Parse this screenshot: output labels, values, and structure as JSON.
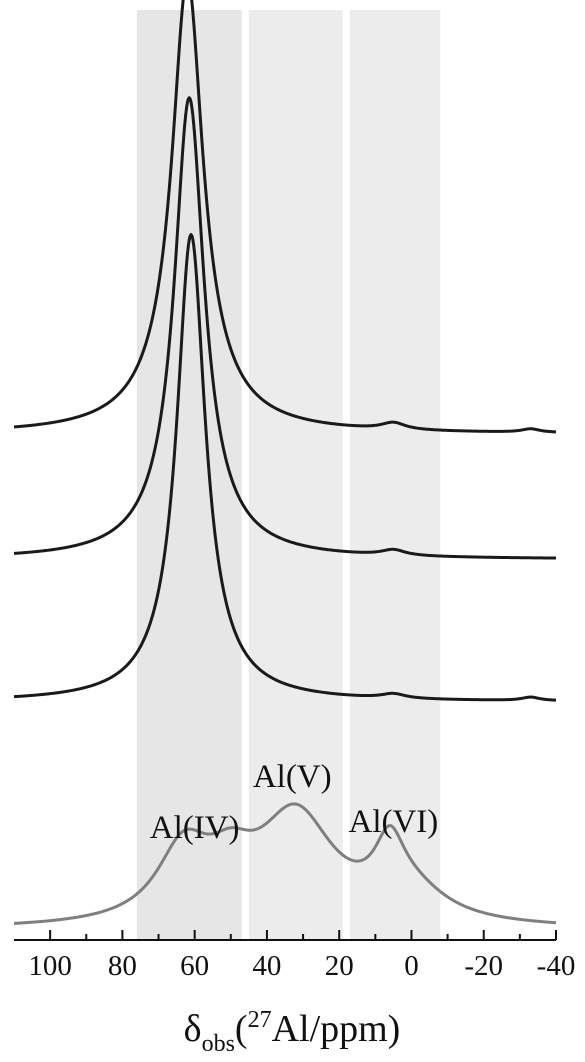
{
  "chart_data": {
    "type": "line",
    "x_axis": {
      "direction": "reversed",
      "xlim": [
        110,
        -40
      ],
      "ticks": [
        100,
        80,
        60,
        40,
        20,
        0,
        -20,
        -40
      ],
      "tick_labels": [
        "100",
        "80",
        "60",
        "40",
        "20",
        "0",
        "-20",
        "-40"
      ],
      "label": {
        "delta": "δ",
        "sub": "obs",
        "open": "(",
        "sup": "27",
        "rest": "Al/ppm)"
      }
    },
    "y_axis": {
      "visible": false
    },
    "shaded_regions": [
      {
        "x_from": 76,
        "x_to": 47,
        "color": "#e6e6e6"
      },
      {
        "x_from": 45,
        "x_to": 19,
        "color": "#ececec"
      },
      {
        "x_from": 17,
        "x_to": -8,
        "color": "#ececec"
      }
    ],
    "annotations": [
      {
        "text": "Al(IV)",
        "x": 60
      },
      {
        "text": "Al(V)",
        "x": 33
      },
      {
        "text": "Al(VI)",
        "x": 5
      }
    ],
    "series": [
      {
        "color": "#1a1a1a",
        "baseline_offset": 4.35,
        "components": [
          {
            "center": 62,
            "amplitude": 3.5,
            "width": 5
          },
          {
            "center": 62,
            "amplitude": 0.5,
            "width": 11
          },
          {
            "center": 5,
            "amplitude": 0.06,
            "width": 4
          },
          {
            "center": -33,
            "amplitude": 0.03,
            "width": 3
          }
        ]
      },
      {
        "color": "#1a1a1a",
        "baseline_offset": 3.25,
        "components": [
          {
            "center": 61.5,
            "amplitude": 3.6,
            "width": 4.8
          },
          {
            "center": 61.5,
            "amplitude": 0.45,
            "width": 10
          },
          {
            "center": 5,
            "amplitude": 0.05,
            "width": 4
          }
        ]
      },
      {
        "color": "#1a1a1a",
        "baseline_offset": 2.0,
        "components": [
          {
            "center": 61,
            "amplitude": 3.7,
            "width": 4.6
          },
          {
            "center": 61,
            "amplitude": 0.4,
            "width": 9.5
          },
          {
            "center": 5,
            "amplitude": 0.04,
            "width": 4
          },
          {
            "center": -33,
            "amplitude": 0.03,
            "width": 3
          }
        ]
      },
      {
        "color": "#7f7f7f",
        "baseline_offset": 0,
        "components": [
          {
            "center": 63,
            "amplitude": 0.62,
            "width": 9
          },
          {
            "center": 50,
            "amplitude": 0.35,
            "width": 8
          },
          {
            "center": 32,
            "amplitude": 0.95,
            "width": 13
          },
          {
            "center": 6,
            "amplitude": 0.5,
            "width": 5
          },
          {
            "center": 0,
            "amplitude": 0.25,
            "width": 12
          }
        ]
      }
    ]
  }
}
